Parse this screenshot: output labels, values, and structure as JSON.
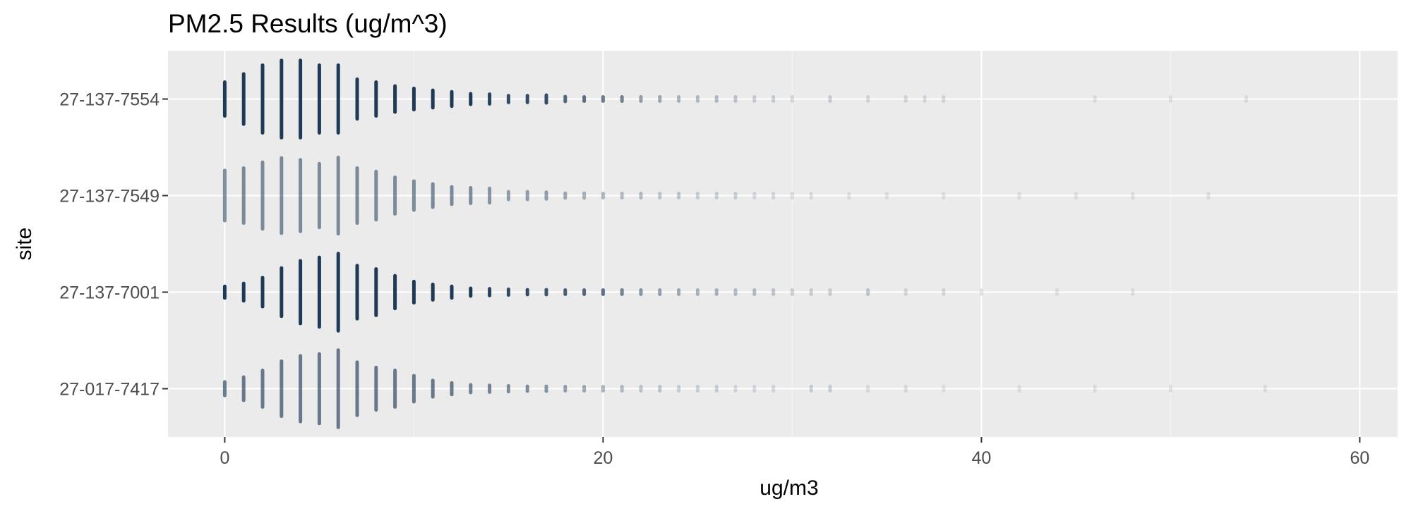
{
  "chart_data": {
    "type": "scatter",
    "title": "PM2.5 Results (ug/m^3)",
    "xlabel": "ug/m3",
    "ylabel": "site",
    "xlim": [
      -3,
      62
    ],
    "x_ticks": [
      0,
      20,
      40,
      60
    ],
    "categories": [
      "27-017-7417",
      "27-137-7001",
      "27-137-7549",
      "27-137-7554"
    ],
    "grid": true,
    "colors": {
      "panel": "#ebebeb",
      "grid_major": "#ffffff",
      "grid_minor": "#f5f5f5",
      "point": "#1f3a56",
      "text": "#000000",
      "tick_text": "#4d4d4d"
    },
    "series": [
      {
        "category": "27-017-7417",
        "points": [
          {
            "x": 0,
            "h": 0.14,
            "a": 0.65
          },
          {
            "x": 1,
            "h": 0.24,
            "a": 0.65
          },
          {
            "x": 2,
            "h": 0.38,
            "a": 0.65
          },
          {
            "x": 3,
            "h": 0.57,
            "a": 0.65
          },
          {
            "x": 4,
            "h": 0.68,
            "a": 0.65
          },
          {
            "x": 5,
            "h": 0.72,
            "a": 0.65
          },
          {
            "x": 6,
            "h": 0.8,
            "a": 0.65
          },
          {
            "x": 7,
            "h": 0.55,
            "a": 0.65
          },
          {
            "x": 8,
            "h": 0.44,
            "a": 0.65
          },
          {
            "x": 9,
            "h": 0.38,
            "a": 0.65
          },
          {
            "x": 10,
            "h": 0.27,
            "a": 0.65
          },
          {
            "x": 11,
            "h": 0.17,
            "a": 0.65
          },
          {
            "x": 12,
            "h": 0.12,
            "a": 0.65
          },
          {
            "x": 13,
            "h": 0.08,
            "a": 0.6
          },
          {
            "x": 14,
            "h": 0.07,
            "a": 0.6
          },
          {
            "x": 15,
            "h": 0.06,
            "a": 0.55
          },
          {
            "x": 16,
            "h": 0.05,
            "a": 0.55
          },
          {
            "x": 17,
            "h": 0.05,
            "a": 0.5
          },
          {
            "x": 18,
            "h": 0.04,
            "a": 0.45
          },
          {
            "x": 19,
            "h": 0.03,
            "a": 0.4
          },
          {
            "x": 20,
            "h": 0.03,
            "a": 0.35
          },
          {
            "x": 21,
            "h": 0.03,
            "a": 0.3
          },
          {
            "x": 22,
            "h": 0.02,
            "a": 0.25
          },
          {
            "x": 23,
            "h": 0.02,
            "a": 0.25
          },
          {
            "x": 24,
            "h": 0.02,
            "a": 0.2
          },
          {
            "x": 25,
            "h": 0.02,
            "a": 0.2
          },
          {
            "x": 26,
            "h": 0.02,
            "a": 0.2
          },
          {
            "x": 27,
            "h": 0.02,
            "a": 0.15
          },
          {
            "x": 28,
            "h": 0.02,
            "a": 0.15
          },
          {
            "x": 29,
            "h": 0.02,
            "a": 0.15
          },
          {
            "x": 31,
            "h": 0.02,
            "a": 0.2
          },
          {
            "x": 32,
            "h": 0.02,
            "a": 0.2
          },
          {
            "x": 34,
            "h": 0.02,
            "a": 0.12
          },
          {
            "x": 36,
            "h": 0.02,
            "a": 0.12
          },
          {
            "x": 38,
            "h": 0.02,
            "a": 0.1
          },
          {
            "x": 42,
            "h": 0.02,
            "a": 0.1
          },
          {
            "x": 46,
            "h": 0.02,
            "a": 0.1
          },
          {
            "x": 50,
            "h": 0.02,
            "a": 0.1
          },
          {
            "x": 55,
            "h": 0.02,
            "a": 0.1
          }
        ]
      },
      {
        "category": "27-137-7001",
        "points": [
          {
            "x": 0,
            "h": 0.12,
            "a": 1.0
          },
          {
            "x": 1,
            "h": 0.18,
            "a": 1.0
          },
          {
            "x": 2,
            "h": 0.3,
            "a": 1.0
          },
          {
            "x": 3,
            "h": 0.5,
            "a": 1.0
          },
          {
            "x": 4,
            "h": 0.65,
            "a": 1.0
          },
          {
            "x": 5,
            "h": 0.72,
            "a": 1.0
          },
          {
            "x": 6,
            "h": 0.8,
            "a": 1.0
          },
          {
            "x": 7,
            "h": 0.55,
            "a": 1.0
          },
          {
            "x": 8,
            "h": 0.48,
            "a": 1.0
          },
          {
            "x": 9,
            "h": 0.34,
            "a": 1.0
          },
          {
            "x": 10,
            "h": 0.22,
            "a": 1.0
          },
          {
            "x": 11,
            "h": 0.16,
            "a": 1.0
          },
          {
            "x": 12,
            "h": 0.12,
            "a": 1.0
          },
          {
            "x": 13,
            "h": 0.08,
            "a": 1.0
          },
          {
            "x": 14,
            "h": 0.07,
            "a": 0.95
          },
          {
            "x": 15,
            "h": 0.06,
            "a": 0.9
          },
          {
            "x": 16,
            "h": 0.05,
            "a": 0.9
          },
          {
            "x": 17,
            "h": 0.05,
            "a": 0.85
          },
          {
            "x": 18,
            "h": 0.04,
            "a": 0.8
          },
          {
            "x": 19,
            "h": 0.03,
            "a": 0.75
          },
          {
            "x": 20,
            "h": 0.03,
            "a": 0.7
          },
          {
            "x": 21,
            "h": 0.03,
            "a": 0.6
          },
          {
            "x": 22,
            "h": 0.02,
            "a": 0.5
          },
          {
            "x": 23,
            "h": 0.02,
            "a": 0.45
          },
          {
            "x": 24,
            "h": 0.02,
            "a": 0.4
          },
          {
            "x": 25,
            "h": 0.02,
            "a": 0.35
          },
          {
            "x": 26,
            "h": 0.02,
            "a": 0.35
          },
          {
            "x": 27,
            "h": 0.02,
            "a": 0.3
          },
          {
            "x": 28,
            "h": 0.02,
            "a": 0.3
          },
          {
            "x": 29,
            "h": 0.02,
            "a": 0.25
          },
          {
            "x": 30,
            "h": 0.02,
            "a": 0.2
          },
          {
            "x": 31,
            "h": 0.02,
            "a": 0.2
          },
          {
            "x": 32,
            "h": 0.02,
            "a": 0.2
          },
          {
            "x": 34,
            "h": 0.02,
            "a": 0.25
          },
          {
            "x": 36,
            "h": 0.02,
            "a": 0.15
          },
          {
            "x": 38,
            "h": 0.02,
            "a": 0.15
          },
          {
            "x": 40,
            "h": 0.02,
            "a": 0.12
          },
          {
            "x": 44,
            "h": 0.02,
            "a": 0.1
          },
          {
            "x": 48,
            "h": 0.02,
            "a": 0.1
          }
        ]
      },
      {
        "category": "27-137-7549",
        "points": [
          {
            "x": 0,
            "h": 0.52,
            "a": 0.55
          },
          {
            "x": 1,
            "h": 0.57,
            "a": 0.55
          },
          {
            "x": 2,
            "h": 0.69,
            "a": 0.55
          },
          {
            "x": 3,
            "h": 0.78,
            "a": 0.55
          },
          {
            "x": 4,
            "h": 0.74,
            "a": 0.55
          },
          {
            "x": 5,
            "h": 0.66,
            "a": 0.55
          },
          {
            "x": 6,
            "h": 0.79,
            "a": 0.55
          },
          {
            "x": 7,
            "h": 0.57,
            "a": 0.55
          },
          {
            "x": 8,
            "h": 0.5,
            "a": 0.55
          },
          {
            "x": 9,
            "h": 0.38,
            "a": 0.55
          },
          {
            "x": 10,
            "h": 0.3,
            "a": 0.55
          },
          {
            "x": 11,
            "h": 0.24,
            "a": 0.55
          },
          {
            "x": 12,
            "h": 0.18,
            "a": 0.55
          },
          {
            "x": 13,
            "h": 0.16,
            "a": 0.55
          },
          {
            "x": 14,
            "h": 0.15,
            "a": 0.5
          },
          {
            "x": 15,
            "h": 0.08,
            "a": 0.45
          },
          {
            "x": 16,
            "h": 0.08,
            "a": 0.45
          },
          {
            "x": 17,
            "h": 0.07,
            "a": 0.45
          },
          {
            "x": 18,
            "h": 0.05,
            "a": 0.4
          },
          {
            "x": 19,
            "h": 0.05,
            "a": 0.35
          },
          {
            "x": 20,
            "h": 0.04,
            "a": 0.35
          },
          {
            "x": 21,
            "h": 0.03,
            "a": 0.3
          },
          {
            "x": 22,
            "h": 0.03,
            "a": 0.3
          },
          {
            "x": 23,
            "h": 0.03,
            "a": 0.25
          },
          {
            "x": 24,
            "h": 0.02,
            "a": 0.25
          },
          {
            "x": 25,
            "h": 0.02,
            "a": 0.2
          },
          {
            "x": 26,
            "h": 0.02,
            "a": 0.2
          },
          {
            "x": 27,
            "h": 0.02,
            "a": 0.2
          },
          {
            "x": 28,
            "h": 0.02,
            "a": 0.15
          },
          {
            "x": 29,
            "h": 0.02,
            "a": 0.15
          },
          {
            "x": 30,
            "h": 0.02,
            "a": 0.12
          },
          {
            "x": 31,
            "h": 0.02,
            "a": 0.12
          },
          {
            "x": 33,
            "h": 0.02,
            "a": 0.1
          },
          {
            "x": 35,
            "h": 0.02,
            "a": 0.1
          },
          {
            "x": 38,
            "h": 0.02,
            "a": 0.1
          },
          {
            "x": 42,
            "h": 0.02,
            "a": 0.1
          },
          {
            "x": 45,
            "h": 0.02,
            "a": 0.1
          },
          {
            "x": 48,
            "h": 0.02,
            "a": 0.1
          },
          {
            "x": 52,
            "h": 0.02,
            "a": 0.1
          }
        ]
      },
      {
        "category": "27-137-7554",
        "points": [
          {
            "x": 0,
            "h": 0.35,
            "a": 1.0
          },
          {
            "x": 1,
            "h": 0.52,
            "a": 1.0
          },
          {
            "x": 2,
            "h": 0.7,
            "a": 1.0
          },
          {
            "x": 3,
            "h": 0.8,
            "a": 1.0
          },
          {
            "x": 4,
            "h": 0.8,
            "a": 1.0
          },
          {
            "x": 5,
            "h": 0.7,
            "a": 1.0
          },
          {
            "x": 6,
            "h": 0.7,
            "a": 1.0
          },
          {
            "x": 7,
            "h": 0.41,
            "a": 1.0
          },
          {
            "x": 8,
            "h": 0.35,
            "a": 1.0
          },
          {
            "x": 9,
            "h": 0.27,
            "a": 1.0
          },
          {
            "x": 10,
            "h": 0.22,
            "a": 1.0
          },
          {
            "x": 11,
            "h": 0.18,
            "a": 1.0
          },
          {
            "x": 12,
            "h": 0.15,
            "a": 1.0
          },
          {
            "x": 13,
            "h": 0.11,
            "a": 1.0
          },
          {
            "x": 14,
            "h": 0.1,
            "a": 0.95
          },
          {
            "x": 15,
            "h": 0.07,
            "a": 0.9
          },
          {
            "x": 16,
            "h": 0.07,
            "a": 0.9
          },
          {
            "x": 17,
            "h": 0.08,
            "a": 0.9
          },
          {
            "x": 18,
            "h": 0.05,
            "a": 0.75
          },
          {
            "x": 19,
            "h": 0.04,
            "a": 0.7
          },
          {
            "x": 20,
            "h": 0.04,
            "a": 0.65
          },
          {
            "x": 21,
            "h": 0.04,
            "a": 0.6
          },
          {
            "x": 22,
            "h": 0.03,
            "a": 0.45
          },
          {
            "x": 23,
            "h": 0.03,
            "a": 0.4
          },
          {
            "x": 24,
            "h": 0.02,
            "a": 0.35
          },
          {
            "x": 25,
            "h": 0.02,
            "a": 0.3
          },
          {
            "x": 26,
            "h": 0.02,
            "a": 0.3
          },
          {
            "x": 27,
            "h": 0.02,
            "a": 0.25
          },
          {
            "x": 28,
            "h": 0.02,
            "a": 0.2
          },
          {
            "x": 29,
            "h": 0.02,
            "a": 0.2
          },
          {
            "x": 30,
            "h": 0.02,
            "a": 0.15
          },
          {
            "x": 32,
            "h": 0.02,
            "a": 0.2
          },
          {
            "x": 34,
            "h": 0.02,
            "a": 0.15
          },
          {
            "x": 36,
            "h": 0.02,
            "a": 0.15
          },
          {
            "x": 37,
            "h": 0.02,
            "a": 0.15
          },
          {
            "x": 38,
            "h": 0.02,
            "a": 0.15
          },
          {
            "x": 46,
            "h": 0.02,
            "a": 0.1
          },
          {
            "x": 50,
            "h": 0.02,
            "a": 0.1
          },
          {
            "x": 54,
            "h": 0.02,
            "a": 0.1
          }
        ]
      }
    ]
  }
}
